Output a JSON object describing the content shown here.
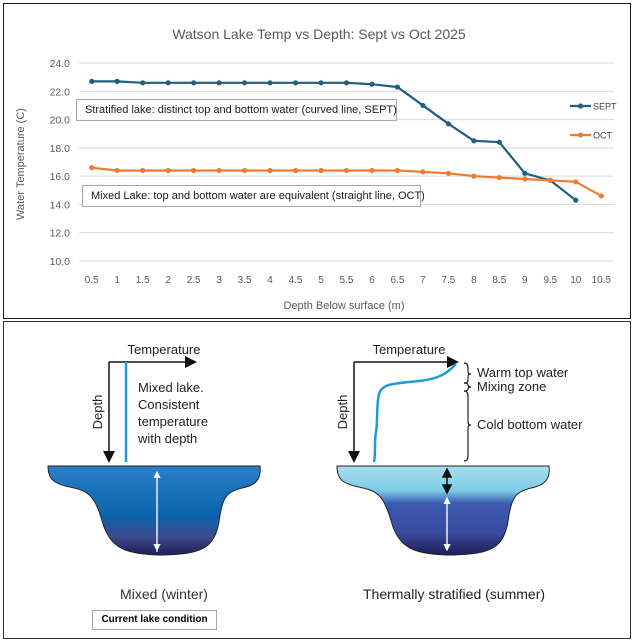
{
  "chart_data": {
    "type": "line",
    "title": "Watson Lake Temp vs Depth: Sept vs Oct 2025",
    "xlabel": "Depth Below surface (m)",
    "ylabel": "Water Temperature (C)",
    "categories": [
      "0.5",
      "1",
      "1.5",
      "2",
      "2.5",
      "3",
      "3.5",
      "4",
      "4.5",
      "5",
      "5.5",
      "6",
      "6.5",
      "7",
      "7.5",
      "8",
      "8.5",
      "9",
      "9.5",
      "10",
      "10.5"
    ],
    "yticks": [
      "24.0",
      "22.0",
      "20.0",
      "18.0",
      "16.0",
      "14.0",
      "12.0",
      "10.0"
    ],
    "ylim": [
      10,
      24
    ],
    "grid": true,
    "legend_position": "right",
    "series": [
      {
        "name": "SEPT",
        "color": "#1f5f7f",
        "values": [
          22.7,
          22.7,
          22.6,
          22.6,
          22.6,
          22.6,
          22.6,
          22.6,
          22.6,
          22.6,
          22.6,
          22.5,
          22.3,
          21.0,
          19.7,
          18.5,
          18.4,
          16.2,
          15.7,
          14.3,
          null
        ]
      },
      {
        "name": "OCT",
        "color": "#ed7d31",
        "values": [
          16.6,
          16.4,
          16.4,
          16.4,
          16.4,
          16.4,
          16.4,
          16.4,
          16.4,
          16.4,
          16.4,
          16.4,
          16.4,
          16.3,
          16.2,
          16.0,
          15.9,
          15.8,
          15.7,
          15.6,
          14.6
        ]
      }
    ],
    "annotations": [
      "Stratified lake: distinct top and bottom water (curved line, SEPT)",
      "Mixed Lake: top and bottom water are equivalent (straight line, OCT)"
    ]
  },
  "diagram": {
    "mixed": {
      "axis_x_label": "Temperature",
      "axis_y_label": "Depth",
      "description_lines": [
        "Mixed lake.",
        "Consistent",
        "temperature",
        "with depth"
      ],
      "caption": "Mixed (winter)"
    },
    "stratified": {
      "axis_x_label": "Temperature",
      "axis_y_label": "Depth",
      "zone_labels": [
        "Warm top water",
        "Mixing zone",
        "Cold bottom water"
      ],
      "caption": "Thermally stratified (summer)"
    },
    "current_condition_label": "Current lake condition"
  },
  "colors": {
    "sept": "#1f5f7f",
    "oct": "#ed7d31",
    "grid": "#d9d9d9",
    "profile_line": "#1e9bd7"
  }
}
